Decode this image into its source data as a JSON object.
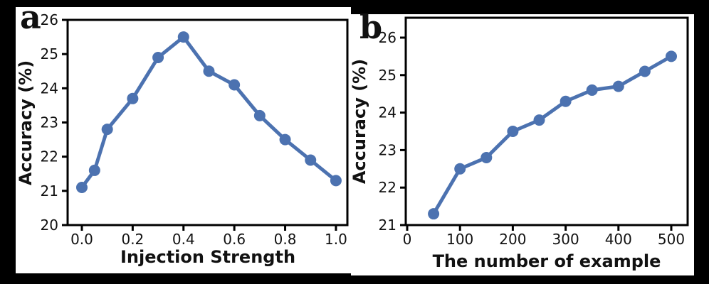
{
  "figure": {
    "background": "#000000",
    "panel_background": "#ffffff",
    "axis_color": "#000000",
    "accent_color": "#4C72B0"
  },
  "chart_data": [
    {
      "type": "line",
      "panel_label": "a",
      "xlabel": "Injection Strength",
      "ylabel": "Accuracy (%)",
      "x": [
        0.0,
        0.05,
        0.1,
        0.2,
        0.3,
        0.4,
        0.5,
        0.6,
        0.7,
        0.8,
        0.9,
        1.0
      ],
      "y": [
        21.1,
        21.6,
        22.8,
        23.7,
        24.9,
        25.5,
        24.5,
        24.1,
        23.2,
        22.5,
        21.9,
        21.3
      ],
      "xticks": [
        0.0,
        0.2,
        0.4,
        0.6,
        0.8,
        1.0
      ],
      "xtick_labels": [
        "0.0",
        "0.2",
        "0.4",
        "0.6",
        "0.8",
        "1.0"
      ],
      "yticks": [
        20,
        21,
        22,
        23,
        24,
        25,
        26
      ],
      "ytick_labels": [
        "20",
        "21",
        "22",
        "23",
        "24",
        "25",
        "26"
      ],
      "xlim": [
        -0.056,
        1.045
      ],
      "ylim": [
        20,
        26
      ],
      "line_color": "#4C72B0",
      "marker": "circle",
      "grid": false,
      "legend": null
    },
    {
      "type": "line",
      "panel_label": "b",
      "xlabel": "The number of example",
      "ylabel": "Accuracy (%)",
      "x": [
        50,
        100,
        150,
        200,
        250,
        300,
        350,
        400,
        450,
        500
      ],
      "y": [
        21.3,
        22.5,
        22.8,
        23.5,
        23.8,
        24.3,
        24.6,
        24.7,
        25.1,
        25.5
      ],
      "xticks": [
        0,
        100,
        200,
        300,
        400,
        500
      ],
      "xtick_labels": [
        "0",
        "100",
        "200",
        "300",
        "400",
        "500"
      ],
      "yticks": [
        21,
        22,
        23,
        24,
        25,
        26
      ],
      "ytick_labels": [
        "21",
        "22",
        "23",
        "24",
        "25",
        "26"
      ],
      "xlim": [
        -2.7,
        531
      ],
      "ylim": [
        21,
        26.53
      ],
      "line_color": "#4C72B0",
      "marker": "circle",
      "grid": false,
      "legend": null
    }
  ]
}
